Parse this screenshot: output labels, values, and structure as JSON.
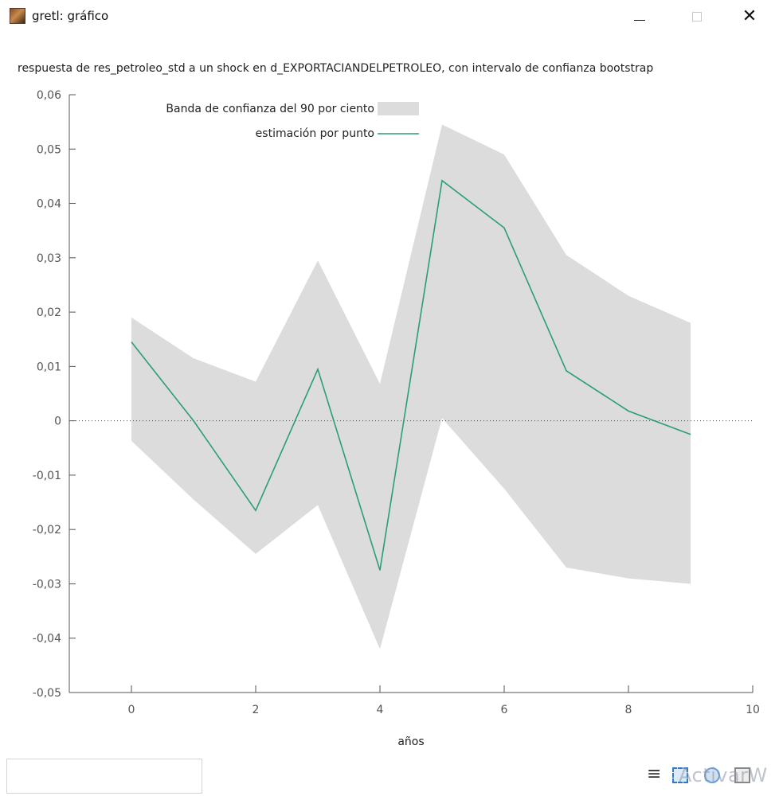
{
  "window": {
    "title": "gretl: gráfico",
    "icon": "gretl-app-icon",
    "minimize_icon": "minimize-icon",
    "maximize_icon": "maximize-icon",
    "close_label": "✕"
  },
  "chart_data": {
    "type": "line",
    "title": "respuesta de res_petroleo_std a un shock en d_EXPORTACIANDELPETROLEO, con intervalo de confianza bootstrap",
    "xlabel": "años",
    "ylabel": "",
    "xlim": [
      -1,
      10
    ],
    "ylim": [
      -0.05,
      0.06
    ],
    "xticks": [
      0,
      2,
      4,
      6,
      8,
      10
    ],
    "xtick_labels": [
      "0",
      "2",
      "4",
      "6",
      "8",
      "10"
    ],
    "yticks": [
      -0.05,
      -0.04,
      -0.03,
      -0.02,
      -0.01,
      0,
      0.01,
      0.02,
      0.03,
      0.04,
      0.05,
      0.06
    ],
    "ytick_labels": [
      "-0,05",
      "-0,04",
      "-0,03",
      "-0,02",
      "-0,01",
      "0",
      "0,01",
      "0,02",
      "0,03",
      "0,04",
      "0,05",
      "0,06"
    ],
    "grid": false,
    "legend_position": "top-left",
    "zero_line": true,
    "x": [
      0,
      1,
      2,
      3,
      4,
      5,
      6,
      7,
      8,
      9
    ],
    "series": [
      {
        "name": "estimación por punto",
        "kind": "line",
        "color": "#2a9d7c",
        "values": [
          0.0145,
          0.0,
          -0.0165,
          0.0095,
          -0.0275,
          0.0442,
          0.0355,
          0.0092,
          0.0018,
          -0.0025
        ]
      }
    ],
    "band": {
      "name": "Banda de confianza del 90 por ciento",
      "color": "#dcdcdc",
      "upper": [
        0.019,
        0.0115,
        0.0072,
        0.0295,
        0.0068,
        0.0545,
        0.049,
        0.0305,
        0.023,
        0.018
      ],
      "lower": [
        -0.0037,
        -0.0145,
        -0.0245,
        -0.0155,
        -0.042,
        0.0005,
        -0.0125,
        -0.027,
        -0.029,
        -0.03
      ]
    }
  },
  "statusbar": {
    "input_value": "",
    "menu_icon": "menu-icon",
    "zoom_icons": [
      "zoom-fit-icon",
      "zoom-icon",
      "window-icon"
    ],
    "watermark": "ActivarW"
  }
}
